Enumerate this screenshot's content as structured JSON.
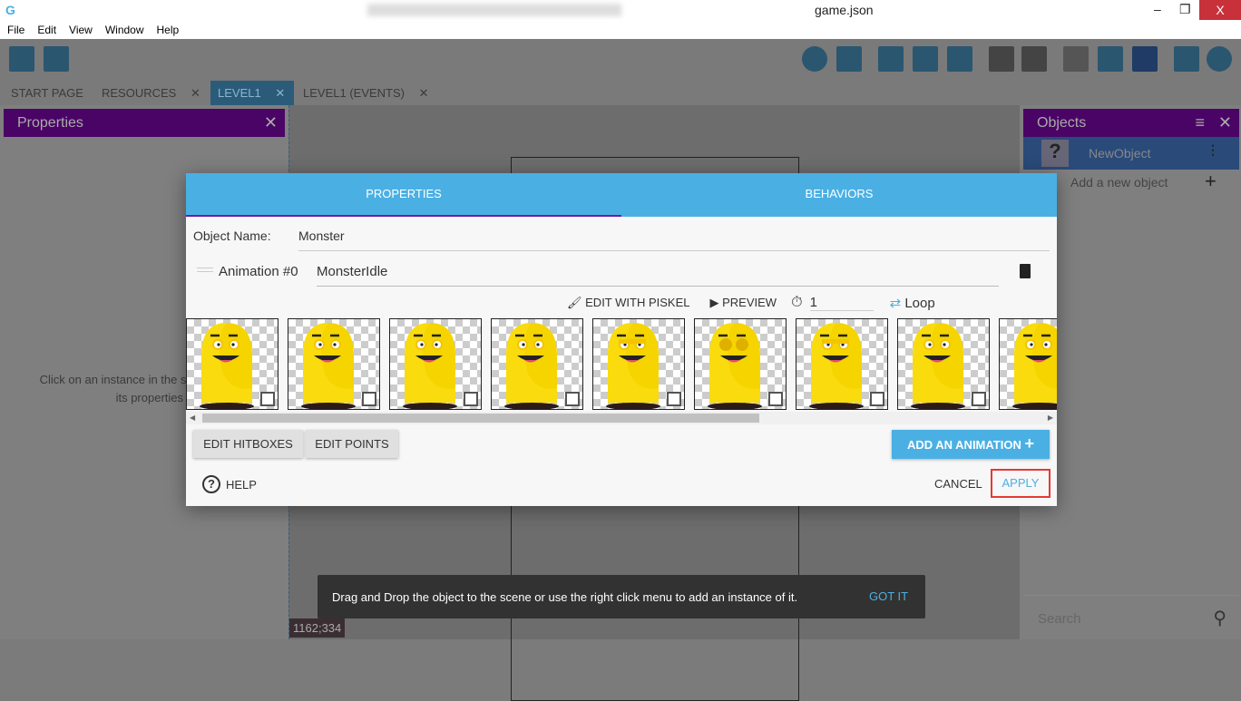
{
  "window": {
    "title": "game.json",
    "minimize": "‒",
    "restore": "❐",
    "close": "X"
  },
  "menu": [
    "File",
    "Edit",
    "View",
    "Window",
    "Help"
  ],
  "tabs": [
    {
      "label": "START PAGE"
    },
    {
      "label": "RESOURCES",
      "close": "✕"
    },
    {
      "label": "LEVEL1",
      "close": "✕",
      "active": true
    },
    {
      "label": "LEVEL1 (EVENTS)",
      "close": "✕"
    }
  ],
  "properties_panel": {
    "title": "Properties",
    "close": "✕",
    "hint_line1": "Click on an instance in the sc",
    "hint_line2": "its properties"
  },
  "objects_panel": {
    "title": "Objects",
    "object_name": "NewObject",
    "add_label": "Add a new object",
    "search_placeholder": "Search"
  },
  "dialog": {
    "tabs": [
      "PROPERTIES",
      "BEHAVIORS"
    ],
    "object_name_label": "Object Name:",
    "object_name": "Monster",
    "animation_label": "Animation #0",
    "animation_name": "MonsterIdle",
    "edit_piskel": "EDIT WITH PISKEL",
    "preview": "PREVIEW",
    "timer_value": "1",
    "loop": "Loop",
    "frame_count": 9,
    "edit_hitboxes": "EDIT HITBOXES",
    "edit_points": "EDIT POINTS",
    "add_animation": "ADD AN ANIMATION",
    "help": "HELP",
    "cancel": "CANCEL",
    "apply": "APPLY"
  },
  "snackbar": {
    "message": "Drag and Drop the object to the scene or use the right click menu to add an instance of it.",
    "action": "GOT IT"
  },
  "coordinates": "1162;334",
  "colors": {
    "accent": "#4ab0e4",
    "purple": "#7b16a8",
    "apply_border": "#e53935"
  }
}
